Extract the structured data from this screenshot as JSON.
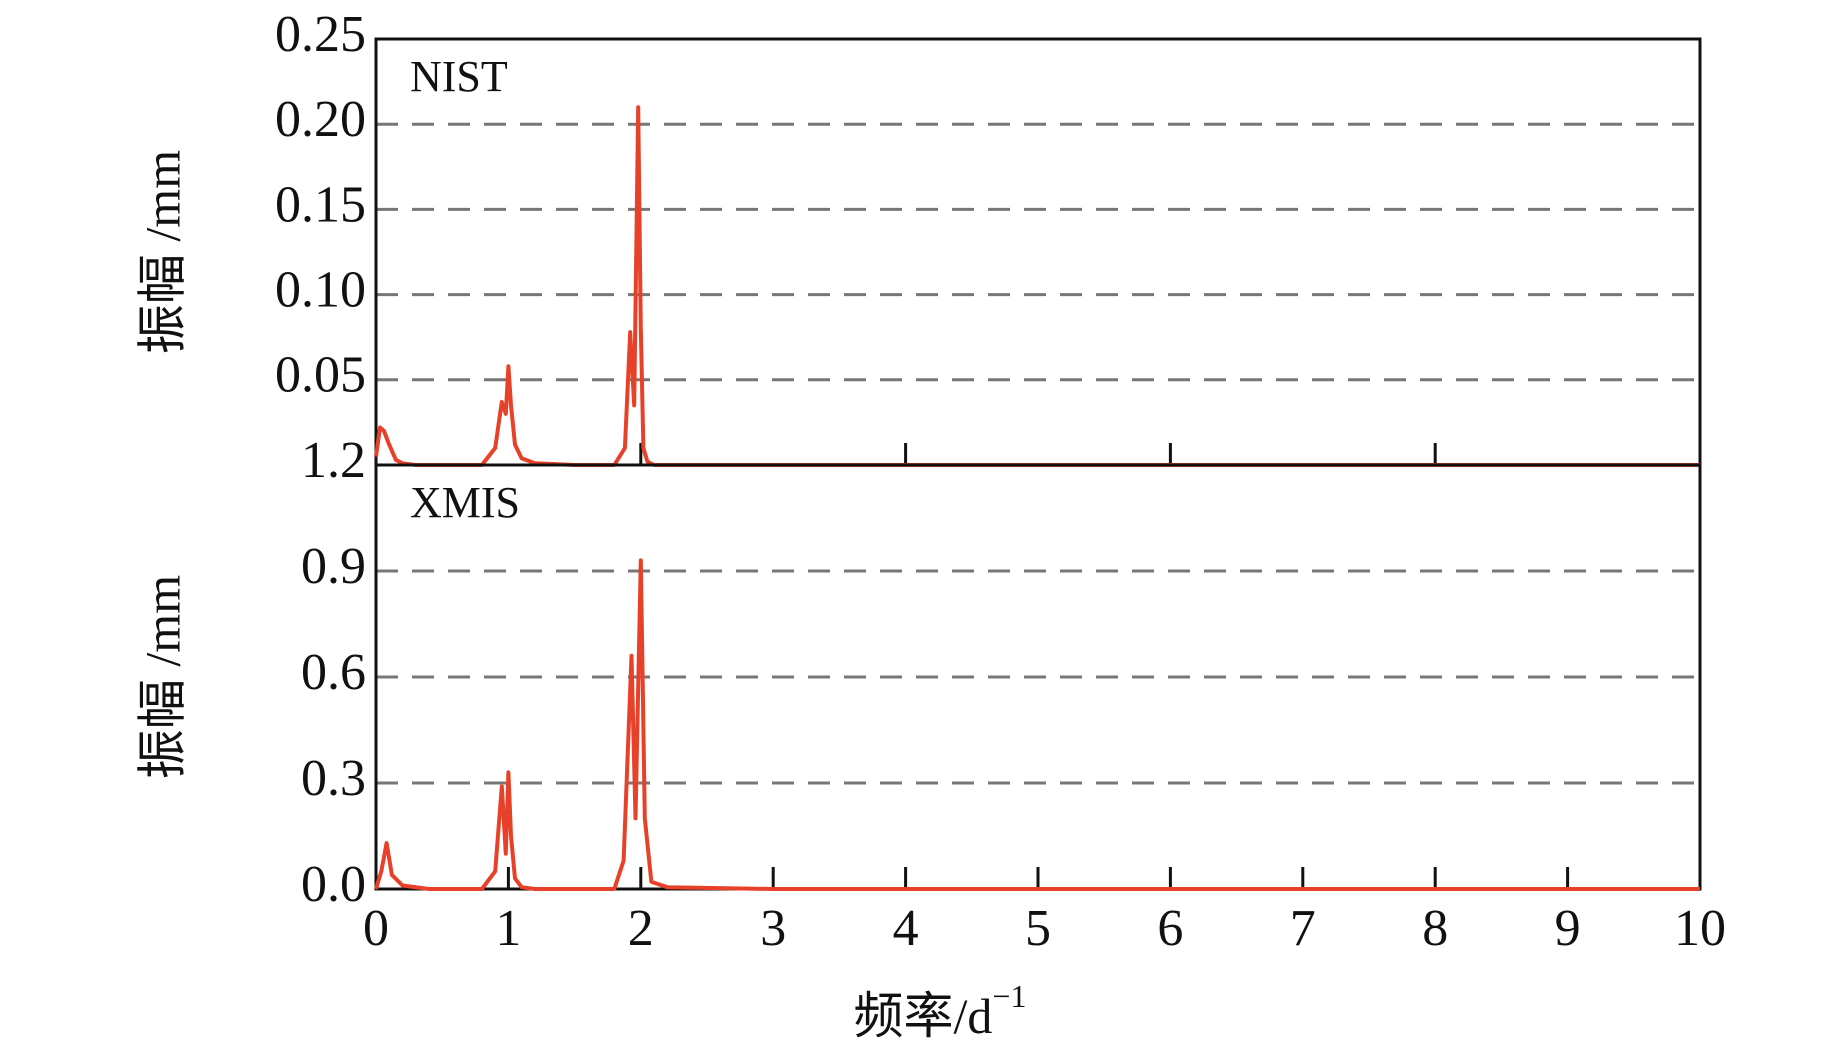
{
  "chart_data": [
    {
      "type": "line",
      "annotation": "NIST",
      "y_label": "振幅 /mm",
      "color": "#e8412a",
      "xlim": [
        0,
        10
      ],
      "xticks": [
        2,
        4,
        6,
        8
      ],
      "ylim": [
        0,
        0.25
      ],
      "yticks": [
        0.05,
        {
          "value": 0.1,
          "label": "0.10"
        },
        0.15,
        {
          "value": 0.2,
          "label": "0.20"
        },
        0.25
      ],
      "grid": true,
      "x": [
        0,
        0.03,
        0.06,
        0.1,
        0.15,
        0.2,
        0.3,
        0.5,
        0.8,
        0.9,
        0.95,
        0.98,
        1.0,
        1.02,
        1.05,
        1.1,
        1.2,
        1.5,
        1.8,
        1.88,
        1.92,
        1.95,
        1.98,
        2.0,
        2.02,
        2.05,
        2.1,
        2.3,
        3,
        10
      ],
      "values": [
        0.005,
        0.022,
        0.02,
        0.012,
        0.003,
        0.001,
        0,
        0,
        0,
        0.01,
        0.037,
        0.03,
        0.058,
        0.035,
        0.012,
        0.004,
        0.001,
        0,
        0,
        0.01,
        0.078,
        0.035,
        0.21,
        0.08,
        0.01,
        0.002,
        0,
        0,
        0,
        0
      ]
    },
    {
      "type": "line",
      "annotation": "XMIS",
      "y_label": "振幅 /mm",
      "color": "#e8412a",
      "x_label": "频率/d",
      "x_label_superscript": "−1",
      "xlim": [
        0,
        10
      ],
      "xticks": [
        0,
        1,
        2,
        3,
        4,
        5,
        6,
        7,
        8,
        9,
        10
      ],
      "ylim": [
        0,
        1.2
      ],
      "yticks": [
        {
          "value": 0,
          "label": "0.0"
        },
        0.3,
        0.6,
        0.9,
        1.2
      ],
      "grid": true,
      "x": [
        0,
        0.04,
        0.08,
        0.12,
        0.2,
        0.4,
        0.8,
        0.9,
        0.95,
        0.98,
        1.0,
        1.02,
        1.05,
        1.1,
        1.2,
        1.5,
        1.8,
        1.87,
        1.93,
        1.96,
        2.0,
        2.03,
        2.08,
        2.2,
        3,
        10
      ],
      "values": [
        0,
        0.05,
        0.13,
        0.04,
        0.01,
        0,
        0,
        0.05,
        0.29,
        0.1,
        0.33,
        0.15,
        0.03,
        0.005,
        0,
        0,
        0,
        0.08,
        0.66,
        0.2,
        0.93,
        0.2,
        0.02,
        0.005,
        0,
        0
      ]
    }
  ]
}
